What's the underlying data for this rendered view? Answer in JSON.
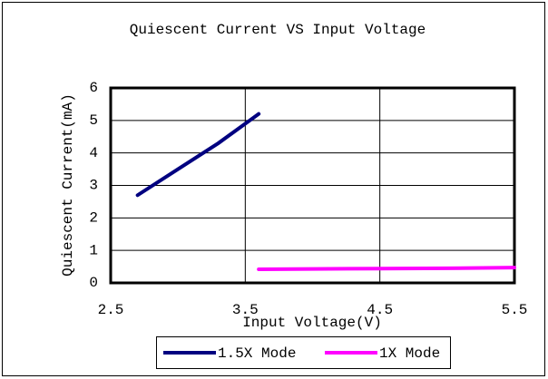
{
  "chart_data": {
    "type": "line",
    "title": "Quiescent Current VS Input Voltage",
    "xlabel": "Input Voltage(V)",
    "ylabel": "Quiescent Current(mA)",
    "xlim": [
      2.5,
      5.5
    ],
    "xticks": [
      2.5,
      3.5,
      4.5,
      5.5
    ],
    "ylim": [
      0,
      6
    ],
    "yticks": [
      0,
      1,
      2,
      3,
      4,
      5,
      6
    ],
    "grid": true,
    "legend": "bottom",
    "series": [
      {
        "name": "1.5X Mode",
        "color": "#000080",
        "x": [
          2.7,
          3.0,
          3.3,
          3.6
        ],
        "values": [
          2.7,
          3.5,
          4.3,
          5.2
        ]
      },
      {
        "name": "1X Mode",
        "color": "#ff00ff",
        "x": [
          3.6,
          4.0,
          4.5,
          5.0,
          5.5
        ],
        "values": [
          0.42,
          0.43,
          0.44,
          0.45,
          0.47
        ]
      }
    ]
  }
}
